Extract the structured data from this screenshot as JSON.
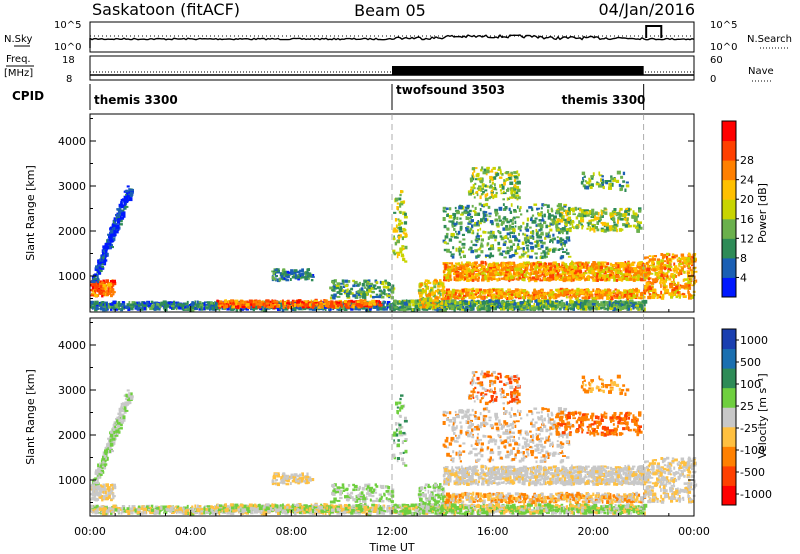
{
  "header": {
    "title": "Saskatoon (fitACF)",
    "beam": "Beam 05",
    "date": "04/Jan/2016"
  },
  "nsky_panel": {
    "left_label": "N.Sky",
    "left_ticks": [
      "10^5",
      "10^0"
    ],
    "right_label": "N.Search",
    "right_ticks": [
      "10^5",
      "10^0"
    ]
  },
  "freq_panel": {
    "left_label_1": "Freq.",
    "left_label_2": "[MHz]",
    "left_ticks": [
      "18",
      "8"
    ],
    "right_label": "Nave",
    "right_ticks": [
      "60",
      "0"
    ]
  },
  "cpid_panel": {
    "label": "CPID",
    "segments": [
      {
        "name": "themis 3300",
        "start_h": 0,
        "end_h": 12
      },
      {
        "name": "twofsound 3503",
        "start_h": 12,
        "end_h": 22
      },
      {
        "name": "themis 3300",
        "start_h": 22,
        "end_h": 24
      }
    ]
  },
  "colors": {
    "power_scale": [
      "#0018ff",
      "#1a5fb4",
      "#2e8b57",
      "#6ab04c",
      "#c8d400",
      "#ffc000",
      "#ff8000",
      "#ff4000",
      "#ff0000"
    ],
    "velocity_scale": [
      "#1a3fb0",
      "#1a6fb0",
      "#2e8b57",
      "#6fcf3f",
      "#c8c8c8",
      "#ffc040",
      "#ff8000",
      "#ff4000",
      "#ff0000"
    ]
  },
  "chart_data": [
    {
      "type": "heatmap",
      "name": "power",
      "ylabel": "Slant Range [km]",
      "yticks": [
        "1000",
        "2000",
        "3000",
        "4000"
      ],
      "ylim": [
        200,
        4600
      ],
      "xlim_hours": [
        0,
        24
      ],
      "colorbar_label": "Power [dB]",
      "colorbar_ticks": [
        "4",
        "8",
        "12",
        "16",
        "20",
        "24",
        "28"
      ],
      "colorbar_range": [
        0,
        32
      ]
    },
    {
      "type": "heatmap",
      "name": "velocity",
      "ylabel": "Slant Range [km]",
      "yticks": [
        "1000",
        "2000",
        "3000",
        "4000"
      ],
      "ylim": [
        200,
        4600
      ],
      "xlim_hours": [
        0,
        24
      ],
      "xlabel": "Time UT",
      "xticks": [
        "00:00",
        "04:00",
        "08:00",
        "12:00",
        "16:00",
        "20:00",
        "00:00"
      ],
      "colorbar_label": "Velocity [m s⁻¹]",
      "colorbar_ticks": [
        "1000",
        "500",
        "100",
        "25",
        "-25",
        "-100",
        "-500",
        "-1000"
      ]
    }
  ]
}
